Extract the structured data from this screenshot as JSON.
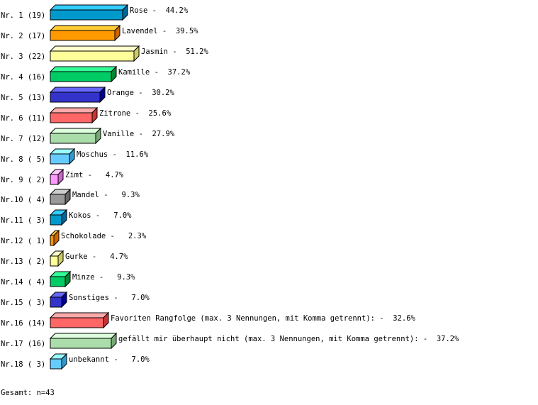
{
  "chart_data": {
    "type": "bar",
    "orientation": "horizontal",
    "style": "3d",
    "unit": "%",
    "categories": [
      "Nr. 1 (19)",
      "Nr. 2 (17)",
      "Nr. 3 (22)",
      "Nr. 4 (16)",
      "Nr. 5 (13)",
      "Nr. 6 (11)",
      "Nr. 7 (12)",
      "Nr. 8 ( 5)",
      "Nr. 9 ( 2)",
      "Nr.10 ( 4)",
      "Nr.11 ( 3)",
      "Nr.12 ( 1)",
      "Nr.13 ( 2)",
      "Nr.14 ( 4)",
      "Nr.15 ( 3)",
      "Nr.16 (14)",
      "Nr.17 (16)",
      "Nr.18 ( 3)"
    ],
    "labels": [
      "Rose",
      "Lavendel",
      "Jasmin",
      "Kamille",
      "Orange",
      "Zitrone",
      "Vanille",
      "Moschus",
      "Zimt",
      "Mandel",
      "Kokos",
      "Schokolade",
      "Gurke",
      "Minze",
      "Sonstiges",
      "Favoriten Rangfolge (max. 3 Nennungen, mit Komma getrennt):",
      "gefällt mir überhaupt nicht (max. 3 Nennungen, mit Komma getrennt):",
      "unbekannt"
    ],
    "counts": [
      19,
      17,
      22,
      16,
      13,
      11,
      12,
      5,
      2,
      4,
      3,
      1,
      2,
      4,
      3,
      14,
      16,
      3
    ],
    "values": [
      44.2,
      39.5,
      51.2,
      37.2,
      30.2,
      25.6,
      27.9,
      11.6,
      4.7,
      9.3,
      7.0,
      2.3,
      4.7,
      9.3,
      7.0,
      32.6,
      37.2,
      7.0
    ],
    "palette": [
      {
        "front": "#0099cc",
        "top": "#33ccff",
        "side": "#006699"
      },
      {
        "front": "#ff9900",
        "top": "#ffcc33",
        "side": "#cc6600"
      },
      {
        "front": "#ffff99",
        "top": "#ffffcc",
        "side": "#cccc66"
      },
      {
        "front": "#00cc66",
        "top": "#33ff99",
        "side": "#008833"
      },
      {
        "front": "#3333cc",
        "top": "#6666ff",
        "side": "#000099"
      },
      {
        "front": "#ff6666",
        "top": "#ffaaaa",
        "side": "#cc3333"
      },
      {
        "front": "#aaddaa",
        "top": "#ddffdd",
        "side": "#77aa77"
      },
      {
        "front": "#66ccff",
        "top": "#99ffff",
        "side": "#3399cc"
      },
      {
        "front": "#ff99ff",
        "top": "#ffccff",
        "side": "#cc66cc"
      },
      {
        "front": "#999999",
        "top": "#cccccc",
        "side": "#666666"
      }
    ],
    "total_label": "Gesamt: n=43"
  }
}
